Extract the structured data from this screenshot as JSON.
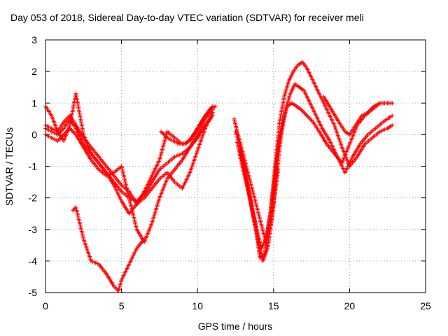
{
  "chart_data": {
    "type": "scatter",
    "title": "Day 053 of 2018, Sidereal Day-to-day VTEC variation (SDTVAR) for receiver meli",
    "xlabel": "GPS time / hours",
    "ylabel": "SDTVAR / TECUs",
    "xlim": [
      0,
      25
    ],
    "ylim": [
      -5,
      3
    ],
    "xticks": [
      "0",
      "5",
      "10",
      "15",
      "20",
      "25"
    ],
    "yticks": [
      "-5",
      "-4",
      "-3",
      "-2",
      "-1",
      "0",
      "1",
      "2",
      "3"
    ],
    "grid": true,
    "marker": "plus",
    "color": "#ff0000",
    "series": [
      {
        "x": [
          0.0,
          0.4,
          0.8,
          1.2,
          1.6,
          2.0,
          2.5,
          3.0,
          3.5,
          4.0,
          4.5,
          5.0,
          5.5,
          6.0,
          6.5,
          7.0,
          7.5,
          8.0,
          8.5,
          9.0,
          9.5,
          10.0,
          10.5,
          11.0
        ],
        "y": [
          0.2,
          0.1,
          0.0,
          0.2,
          0.5,
          0.2,
          -0.3,
          -0.6,
          -0.9,
          -1.2,
          -1.5,
          -1.8,
          -2.0,
          -2.1,
          -1.9,
          -1.5,
          -1.1,
          -0.9,
          -0.7,
          -0.6,
          -0.4,
          -0.1,
          0.3,
          0.6
        ]
      },
      {
        "x": [
          0.0,
          0.4,
          0.8,
          1.2,
          1.6,
          2.0,
          2.5,
          3.0,
          3.5,
          4.0,
          4.5,
          5.0,
          5.5,
          6.0,
          6.5,
          7.0,
          7.5,
          8.0,
          8.5,
          9.0,
          9.5,
          10.0,
          10.5,
          11.0
        ],
        "y": [
          0.3,
          0.2,
          0.1,
          0.4,
          0.6,
          0.3,
          -0.1,
          -0.4,
          -0.7,
          -1.0,
          -1.3,
          -1.6,
          -1.8,
          -2.2,
          -2.0,
          -1.7,
          -1.4,
          -1.2,
          -1.5,
          -1.7,
          -1.2,
          -0.5,
          0.2,
          0.7
        ]
      },
      {
        "x": [
          0.0,
          0.4,
          0.8,
          1.2,
          1.6,
          2.0,
          2.5,
          3.0,
          3.5,
          4.0,
          4.5,
          5.0,
          5.5,
          6.0,
          6.5,
          7.0,
          7.5,
          8.0,
          8.5,
          9.0,
          9.5,
          10.0,
          10.5,
          11.0
        ],
        "y": [
          0.9,
          0.6,
          0.1,
          -0.2,
          0.3,
          1.3,
          0.0,
          -0.6,
          -0.9,
          -1.2,
          -1.6,
          -2.1,
          -2.5,
          -2.2,
          -1.8,
          -1.3,
          -0.8,
          0.1,
          -0.1,
          -0.3,
          -0.2,
          0.2,
          0.6,
          0.9
        ]
      },
      {
        "x": [
          0.0,
          0.4,
          0.8,
          1.2,
          1.6,
          2.0,
          2.5,
          3.0,
          3.5,
          4.0,
          4.5,
          5.0,
          5.5,
          6.0,
          6.5,
          7.0,
          7.5,
          8.0,
          8.5,
          9.0,
          9.5,
          10.0,
          10.5,
          11.0
        ],
        "y": [
          0.0,
          -0.1,
          -0.2,
          0.0,
          0.2,
          0.0,
          -0.4,
          -0.8,
          -1.1,
          -1.3,
          -1.2,
          -1.0,
          -2.0,
          -3.0,
          -3.4,
          -2.8,
          -2.0,
          -1.4,
          -1.1,
          -0.8,
          -0.4,
          0.0,
          0.5,
          0.8
        ]
      },
      {
        "x": [
          1.8,
          2.0,
          2.5,
          3.0,
          3.5,
          4.0,
          4.5,
          4.8,
          5.0,
          5.5,
          6.0,
          6.5
        ],
        "y": [
          -2.4,
          -2.3,
          -3.3,
          -4.0,
          -4.1,
          -4.4,
          -4.8,
          -4.95,
          -4.6,
          -4.1,
          -3.6,
          -3.3
        ]
      },
      {
        "x": [
          12.5,
          12.7,
          13.0,
          13.3,
          13.6,
          13.9,
          14.2,
          14.5,
          14.8,
          15.1,
          15.4,
          15.7,
          16.0,
          16.3,
          16.6,
          16.9,
          17.2,
          17.6,
          18.0,
          18.5,
          19.0,
          19.5,
          20.0,
          20.5,
          21.0,
          21.5,
          22.0,
          22.5,
          22.8
        ],
        "y": [
          0.1,
          -0.2,
          -0.8,
          -1.6,
          -2.4,
          -3.0,
          -3.6,
          -3.3,
          -2.5,
          -1.0,
          0.4,
          1.2,
          1.7,
          2.0,
          2.2,
          2.3,
          2.1,
          1.7,
          1.3,
          0.8,
          0.3,
          -0.4,
          -1.0,
          -0.7,
          -0.3,
          -0.1,
          0.1,
          0.2,
          0.3
        ]
      },
      {
        "x": [
          12.8,
          13.1,
          13.4,
          13.7,
          14.0,
          14.3,
          14.6,
          14.9,
          15.2,
          15.5,
          15.8,
          16.1,
          16.4,
          16.7,
          17.0,
          17.4,
          17.8,
          18.2,
          18.7,
          19.2,
          19.7,
          20.2,
          20.7,
          21.2,
          21.7,
          22.2,
          22.8
        ],
        "y": [
          -0.5,
          -1.2,
          -1.9,
          -2.7,
          -3.4,
          -4.0,
          -3.6,
          -2.6,
          -1.3,
          0.0,
          0.8,
          1.3,
          1.6,
          1.5,
          1.4,
          1.0,
          0.6,
          0.2,
          -0.2,
          -0.7,
          -1.2,
          -0.7,
          -0.3,
          0.0,
          0.2,
          0.4,
          0.6
        ]
      },
      {
        "x": [
          12.6,
          12.9,
          13.2,
          13.5,
          13.8,
          14.1,
          14.4,
          14.7,
          15.0,
          15.3,
          15.6,
          15.9,
          16.2,
          16.5,
          16.8,
          17.2,
          17.6,
          18.0,
          18.5,
          19.0,
          19.5,
          20.0,
          20.5,
          21.0,
          21.5,
          22.0,
          22.8
        ],
        "y": [
          -0.2,
          -0.9,
          -1.5,
          -2.1,
          -2.8,
          -3.9,
          -3.8,
          -2.8,
          -1.7,
          -0.4,
          0.4,
          0.9,
          1.0,
          0.9,
          0.8,
          0.6,
          0.4,
          0.1,
          -0.3,
          -0.6,
          -0.9,
          -0.3,
          0.3,
          0.6,
          0.8,
          1.0,
          1.0
        ]
      },
      {
        "x": [
          18.3,
          18.8,
          19.3,
          19.7,
          20.0,
          20.4,
          20.8,
          21.2,
          21.6,
          22.0,
          22.4,
          22.8
        ],
        "y": [
          1.2,
          0.8,
          0.4,
          0.1,
          0.0,
          0.3,
          0.6,
          0.7,
          0.9,
          1.0,
          1.0,
          1.0
        ]
      },
      {
        "x": [
          7.6,
          8.0,
          8.4,
          8.8,
          9.2,
          9.6,
          10.0,
          10.4,
          10.8,
          11.2
        ],
        "y": [
          0.1,
          -0.1,
          -0.2,
          -0.3,
          -0.3,
          -0.1,
          0.2,
          0.5,
          0.8,
          0.9
        ]
      },
      {
        "x": [
          12.4,
          14.6,
          15.0,
          15.3
        ],
        "y": [
          0.5,
          -3.6,
          -2.2,
          -1.1
        ]
      }
    ]
  }
}
